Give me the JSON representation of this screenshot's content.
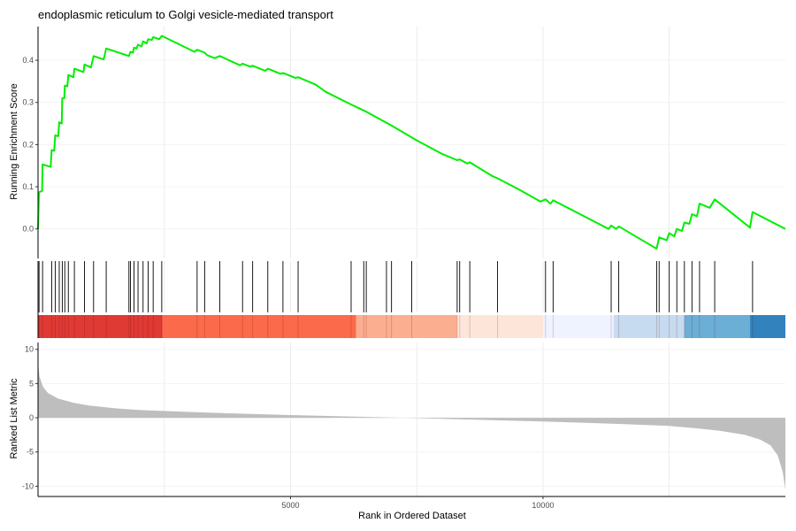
{
  "chart_data": {
    "type": "line",
    "title": "endoplasmic reticulum to Golgi vesicle-mediated transport",
    "xlabel": "Rank in Ordered Dataset",
    "xlim": [
      0,
      14800
    ],
    "x_ticks": [
      5000,
      10000
    ],
    "x_tick_labels": [
      "5000",
      "10000"
    ],
    "grid": true,
    "panels": {
      "running_score": {
        "ylabel": "Running Enrichment Score",
        "ylim": [
          -0.07,
          0.48
        ],
        "y_ticks": [
          0.0,
          0.1,
          0.2,
          0.3,
          0.4
        ],
        "y_tick_labels": [
          "0.0",
          "0.1",
          "0.2",
          "0.3",
          "0.4"
        ],
        "line_color": "#00ee00",
        "points": [
          [
            0,
            0.0
          ],
          [
            20,
            0.087
          ],
          [
            80,
            0.09
          ],
          [
            90,
            0.153
          ],
          [
            250,
            0.147
          ],
          [
            270,
            0.187
          ],
          [
            320,
            0.185
          ],
          [
            340,
            0.222
          ],
          [
            400,
            0.22
          ],
          [
            420,
            0.253
          ],
          [
            470,
            0.25
          ],
          [
            480,
            0.31
          ],
          [
            520,
            0.31
          ],
          [
            530,
            0.34
          ],
          [
            580,
            0.338
          ],
          [
            600,
            0.365
          ],
          [
            700,
            0.36
          ],
          [
            720,
            0.38
          ],
          [
            900,
            0.372
          ],
          [
            920,
            0.39
          ],
          [
            1050,
            0.383
          ],
          [
            1100,
            0.41
          ],
          [
            1300,
            0.402
          ],
          [
            1350,
            0.428
          ],
          [
            1800,
            0.41
          ],
          [
            1830,
            0.42
          ],
          [
            1880,
            0.418
          ],
          [
            1900,
            0.43
          ],
          [
            1950,
            0.428
          ],
          [
            1980,
            0.437
          ],
          [
            2050,
            0.433
          ],
          [
            2080,
            0.445
          ],
          [
            2150,
            0.44
          ],
          [
            2180,
            0.45
          ],
          [
            2250,
            0.448
          ],
          [
            2280,
            0.455
          ],
          [
            2400,
            0.45
          ],
          [
            2450,
            0.458
          ],
          [
            3100,
            0.42
          ],
          [
            3150,
            0.425
          ],
          [
            3300,
            0.418
          ],
          [
            3350,
            0.412
          ],
          [
            3500,
            0.405
          ],
          [
            3600,
            0.41
          ],
          [
            4000,
            0.388
          ],
          [
            4050,
            0.392
          ],
          [
            4200,
            0.385
          ],
          [
            4250,
            0.387
          ],
          [
            4500,
            0.375
          ],
          [
            4550,
            0.38
          ],
          [
            4800,
            0.368
          ],
          [
            4850,
            0.37
          ],
          [
            5100,
            0.358
          ],
          [
            5150,
            0.36
          ],
          [
            5500,
            0.342
          ],
          [
            5700,
            0.325
          ],
          [
            6200,
            0.295
          ],
          [
            6500,
            0.278
          ],
          [
            7000,
            0.245
          ],
          [
            7500,
            0.21
          ],
          [
            8000,
            0.178
          ],
          [
            8300,
            0.163
          ],
          [
            8350,
            0.165
          ],
          [
            8500,
            0.155
          ],
          [
            8550,
            0.158
          ],
          [
            9000,
            0.125
          ],
          [
            9100,
            0.12
          ],
          [
            9500,
            0.095
          ],
          [
            9950,
            0.065
          ],
          [
            10050,
            0.07
          ],
          [
            10150,
            0.06
          ],
          [
            10200,
            0.068
          ],
          [
            11300,
            0.0
          ],
          [
            11350,
            0.008
          ],
          [
            11450,
            0.0
          ],
          [
            11500,
            0.006
          ],
          [
            12150,
            -0.04
          ],
          [
            12250,
            -0.047
          ],
          [
            12300,
            -0.02
          ],
          [
            12450,
            -0.027
          ],
          [
            12500,
            -0.01
          ],
          [
            12600,
            -0.018
          ],
          [
            12650,
            0.0
          ],
          [
            12750,
            -0.005
          ],
          [
            12800,
            0.015
          ],
          [
            12900,
            0.012
          ],
          [
            12950,
            0.035
          ],
          [
            13050,
            0.03
          ],
          [
            13100,
            0.06
          ],
          [
            13300,
            0.05
          ],
          [
            13400,
            0.07
          ],
          [
            14100,
            0.003
          ],
          [
            14150,
            0.04
          ],
          [
            14800,
            0.0
          ]
        ]
      },
      "hit_ticks": {
        "positions": [
          20,
          90,
          270,
          340,
          420,
          480,
          530,
          600,
          720,
          920,
          1100,
          1350,
          1800,
          1830,
          1900,
          1980,
          2080,
          2180,
          2280,
          2450,
          3150,
          3300,
          3600,
          4050,
          4250,
          4550,
          4850,
          5150,
          6200,
          6450,
          6500,
          6900,
          7000,
          7400,
          8300,
          8350,
          8550,
          9100,
          10050,
          10200,
          11350,
          11500,
          12250,
          12300,
          12500,
          12650,
          12800,
          12950,
          13100,
          13400,
          14150
        ]
      },
      "color_bar": {
        "segments": [
          {
            "start": 0,
            "end": 2460,
            "color": "#e03a35"
          },
          {
            "start": 2460,
            "end": 6300,
            "color": "#fb6a4a"
          },
          {
            "start": 6300,
            "end": 8300,
            "color": "#fcae91"
          },
          {
            "start": 8300,
            "end": 10000,
            "color": "#fee5d9"
          },
          {
            "start": 10000,
            "end": 11400,
            "color": "#eff3ff"
          },
          {
            "start": 11400,
            "end": 12800,
            "color": "#c6dbef"
          },
          {
            "start": 12800,
            "end": 14100,
            "color": "#6baed6"
          },
          {
            "start": 14100,
            "end": 14800,
            "color": "#3182bd"
          }
        ]
      },
      "ranked_metric": {
        "ylabel": "Ranked List Metric",
        "ylim": [
          -11.5,
          11
        ],
        "y_ticks": [
          10,
          5,
          0,
          -5,
          -10
        ],
        "y_tick_labels": [
          "10",
          "5",
          "0",
          "-5",
          "-10"
        ],
        "fill_color": "#bebebe",
        "points": [
          [
            0,
            8.0
          ],
          [
            30,
            6.0
          ],
          [
            100,
            4.5
          ],
          [
            200,
            3.6
          ],
          [
            400,
            2.8
          ],
          [
            700,
            2.2
          ],
          [
            1000,
            1.8
          ],
          [
            1500,
            1.4
          ],
          [
            2000,
            1.15
          ],
          [
            3000,
            0.85
          ],
          [
            4000,
            0.6
          ],
          [
            5000,
            0.4
          ],
          [
            6000,
            0.22
          ],
          [
            7000,
            0.05
          ],
          [
            7500,
            -0.05
          ],
          [
            8500,
            -0.25
          ],
          [
            9500,
            -0.45
          ],
          [
            10500,
            -0.65
          ],
          [
            11500,
            -0.9
          ],
          [
            12500,
            -1.2
          ],
          [
            13000,
            -1.5
          ],
          [
            13500,
            -1.9
          ],
          [
            14000,
            -2.5
          ],
          [
            14300,
            -3.2
          ],
          [
            14500,
            -4.0
          ],
          [
            14650,
            -5.5
          ],
          [
            14750,
            -8.0
          ],
          [
            14800,
            -10.5
          ]
        ]
      }
    }
  }
}
